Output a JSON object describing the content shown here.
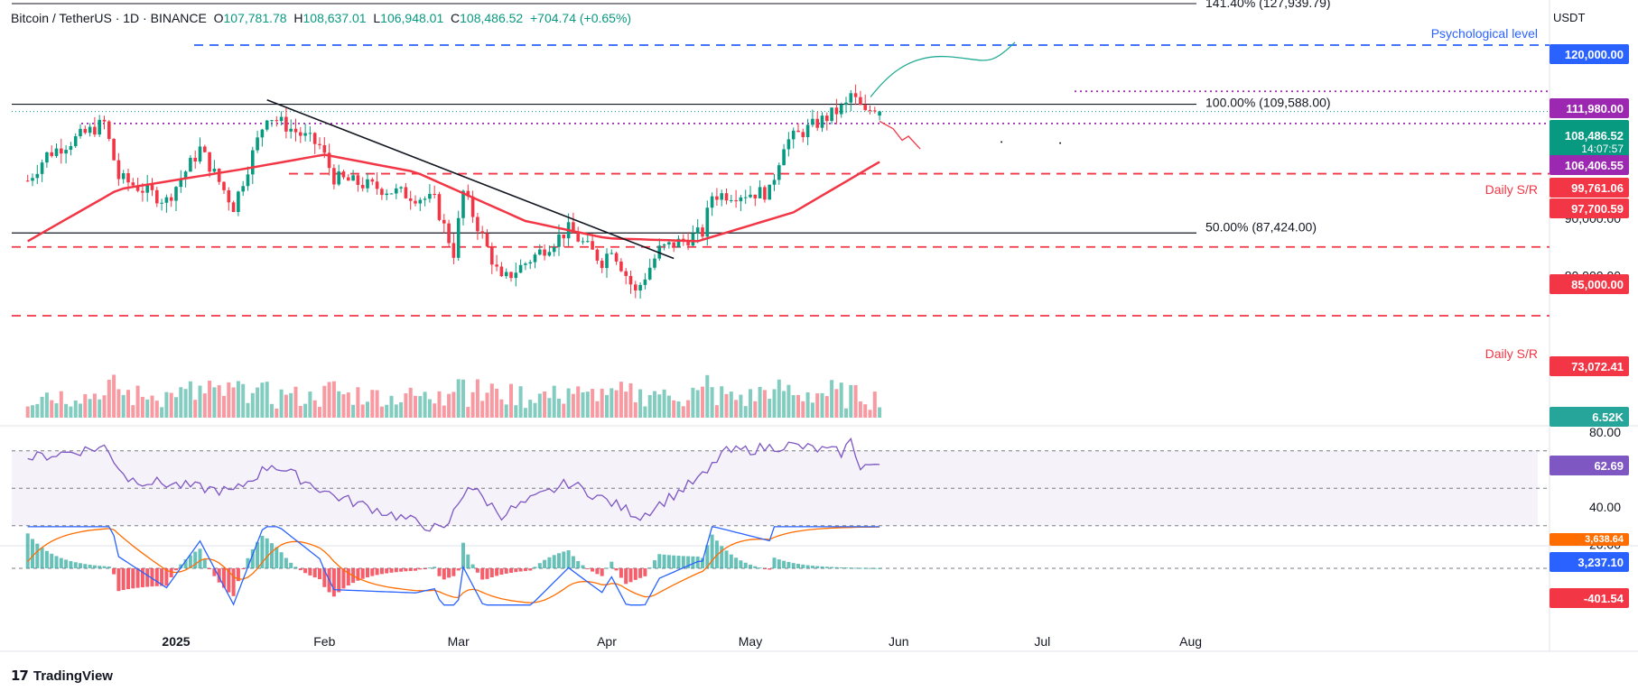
{
  "header": {
    "symbol": "Bitcoin / TetherUS",
    "interval": "1D",
    "exchange": "BINANCE",
    "open_label": "O",
    "open": "107,781.78",
    "high_label": "H",
    "high": "108,637.01",
    "low_label": "L",
    "low": "106,948.01",
    "close_label": "C",
    "close": "108,486.52",
    "change": "+704.74 (+0.65%)"
  },
  "currency": "USDT",
  "brand": "TradingView",
  "colors": {
    "up": "#089981",
    "down": "#f23645",
    "ema": "#f23645",
    "rsi": "#7e57c2",
    "macd": "#2962ff",
    "signal": "#ff6d00",
    "sr": "#f23645",
    "psych": "#2962ff",
    "resistance": "#9c27b0",
    "projection_green": "#22ab94",
    "projection_red": "#f23645"
  },
  "annotations": {
    "fib_top": "141.40% (127,939.79)",
    "fib_100": "100.00% (109,588.00)",
    "fib_50": "50.00% (87,424.00)",
    "psychological": "Psychological level",
    "daily_sr_1": "Daily S/R",
    "daily_sr_2": "Daily S/R"
  },
  "price_axis": {
    "ticks": [
      "90,000.00",
      "80,000.00"
    ],
    "tags": {
      "psych": "120,000.00",
      "res": "111,980.00",
      "last": "108,486.52",
      "timer": "14:07:57",
      "sup1": "106,406.55",
      "ema": "99,761.06",
      "sr1": "97,700.59",
      "sr2": "85,000.00",
      "sr3": "73,072.41"
    }
  },
  "volume": {
    "label": "6.52K"
  },
  "rsi": {
    "ticks": [
      "80.00",
      "40.00",
      "20.00"
    ],
    "value": "62.69"
  },
  "macd": {
    "signal_value": "3,638.64",
    "macd_value": "3,237.10",
    "hist_value": "-401.54"
  },
  "time_axis": [
    "2025",
    "Feb",
    "Mar",
    "Apr",
    "May",
    "Jun",
    "Jul",
    "Aug"
  ],
  "chart_data": {
    "type": "candlestick",
    "symbol": "Bitcoin / TetherUS",
    "ohlc_last": {
      "open": 107781.78,
      "high": 108637.01,
      "low": 106948.01,
      "close": 108486.52
    },
    "price_levels": {
      "psychological": 120000,
      "resistance": 111980,
      "fib_100": 109588,
      "support": 106406.55,
      "ema": 99761.06,
      "daily_sr_upper": 97700.59,
      "fib_50": 87424,
      "daily_sr_mid": 85000,
      "daily_sr_lower": 73072.41
    },
    "ylim": [
      73072,
      120000
    ],
    "price_keypoints": [
      [
        "2024-12-01",
        96500
      ],
      [
        "2024-12-05",
        101000
      ],
      [
        "2024-12-17",
        106500
      ],
      [
        "2024-12-20",
        97000
      ],
      [
        "2024-12-30",
        93000
      ],
      [
        "2025-01-06",
        102000
      ],
      [
        "2025-01-13",
        92000
      ],
      [
        "2025-01-20",
        108000
      ],
      [
        "2025-01-31",
        102500
      ],
      [
        "2025-02-03",
        97000
      ],
      [
        "2025-02-24",
        93000
      ],
      [
        "2025-02-28",
        84000
      ],
      [
        "2025-03-02",
        94500
      ],
      [
        "2025-03-10",
        79000
      ],
      [
        "2025-03-24",
        88000
      ],
      [
        "2025-03-31",
        82500
      ],
      [
        "2025-04-02",
        85000
      ],
      [
        "2025-04-07",
        77000
      ],
      [
        "2025-04-12",
        84500
      ],
      [
        "2025-04-21",
        87500
      ],
      [
        "2025-04-23",
        94000
      ],
      [
        "2025-05-05",
        94500
      ],
      [
        "2025-05-08",
        103000
      ],
      [
        "2025-05-21",
        109500
      ],
      [
        "2025-05-22",
        111500
      ],
      [
        "2025-05-25",
        108000
      ],
      [
        "2025-05-27",
        109500
      ],
      [
        "2025-05-28",
        108486
      ]
    ],
    "ema_keypoints": [
      [
        "2024-12-01",
        86000
      ],
      [
        "2024-12-20",
        95000
      ],
      [
        "2025-01-15",
        98500
      ],
      [
        "2025-02-01",
        101000
      ],
      [
        "2025-02-20",
        98000
      ],
      [
        "2025-03-15",
        89500
      ],
      [
        "2025-04-01",
        86500
      ],
      [
        "2025-04-20",
        86000
      ],
      [
        "2025-05-10",
        91000
      ],
      [
        "2025-05-28",
        99761
      ]
    ],
    "rsi_keypoints": [
      [
        "2024-12-01",
        66
      ],
      [
        "2024-12-17",
        72
      ],
      [
        "2024-12-22",
        55
      ],
      [
        "2025-01-13",
        48
      ],
      [
        "2025-01-21",
        63
      ],
      [
        "2025-02-03",
        46
      ],
      [
        "2025-02-26",
        27
      ],
      [
        "2025-03-03",
        52
      ],
      [
        "2025-03-10",
        36
      ],
      [
        "2025-03-24",
        53
      ],
      [
        "2025-04-08",
        35
      ],
      [
        "2025-04-22",
        58
      ],
      [
        "2025-04-25",
        69
      ],
      [
        "2025-05-09",
        73
      ],
      [
        "2025-05-20",
        69
      ],
      [
        "2025-05-22",
        75
      ],
      [
        "2025-05-24",
        62
      ],
      [
        "2025-05-28",
        62.69
      ]
    ],
    "rsi_levels": [
      70,
      50,
      30
    ],
    "volume_last": "6.52K",
    "macd_last": {
      "signal": 3638.64,
      "macd": 3237.1,
      "histogram": -401.54
    }
  }
}
